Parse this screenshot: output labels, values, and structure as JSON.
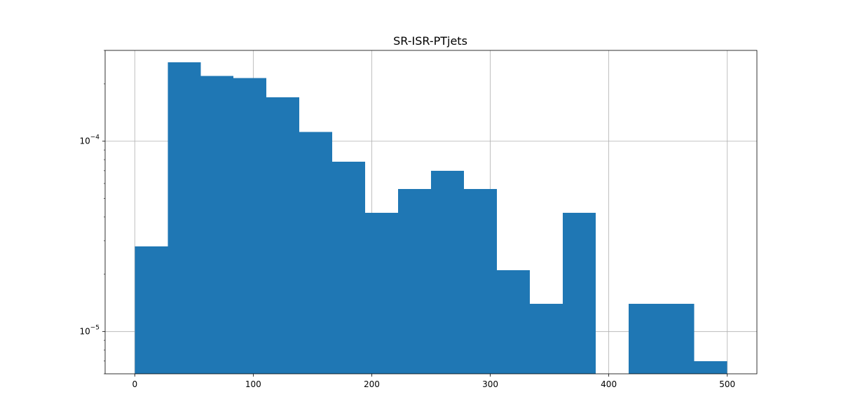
{
  "chart_data": {
    "type": "bar",
    "title": "SR-ISR-PTjets",
    "xlabel": "",
    "ylabel": "",
    "y_scale": "log",
    "grid": true,
    "xlim": [
      -25,
      525
    ],
    "ylim": [
      6e-06,
      0.0003
    ],
    "x_ticks": [
      0,
      100,
      200,
      300,
      400,
      500
    ],
    "x_tick_labels": [
      "0",
      "100",
      "200",
      "300",
      "400",
      "500"
    ],
    "y_major_ticks": [
      1e-05,
      0.0001
    ],
    "y_major_tick_labels": [
      {
        "base": "10",
        "exp": "−5"
      },
      {
        "base": "10",
        "exp": "−4"
      }
    ],
    "y_minor_ticks": [
      6e-06,
      7e-06,
      8e-06,
      9e-06,
      2e-05,
      3e-05,
      4e-05,
      5e-05,
      6e-05,
      7e-05,
      8e-05,
      9e-05,
      0.0002,
      0.0003
    ],
    "bar_color": "#1f77b4",
    "bin_edges": [
      0,
      27.8,
      55.6,
      83.3,
      111.1,
      138.9,
      166.7,
      194.4,
      222.2,
      250,
      277.8,
      305.6,
      333.3,
      361.1,
      388.9,
      416.7,
      444.4,
      472.2,
      500
    ],
    "values": [
      2.8e-05,
      0.00026,
      0.00022,
      0.000215,
      0.00017,
      0.000112,
      7.8e-05,
      4.2e-05,
      5.6e-05,
      7e-05,
      5.6e-05,
      2.1e-05,
      1.4e-05,
      4.2e-05,
      0,
      1.4e-05,
      1.4e-05,
      7e-06
    ]
  }
}
